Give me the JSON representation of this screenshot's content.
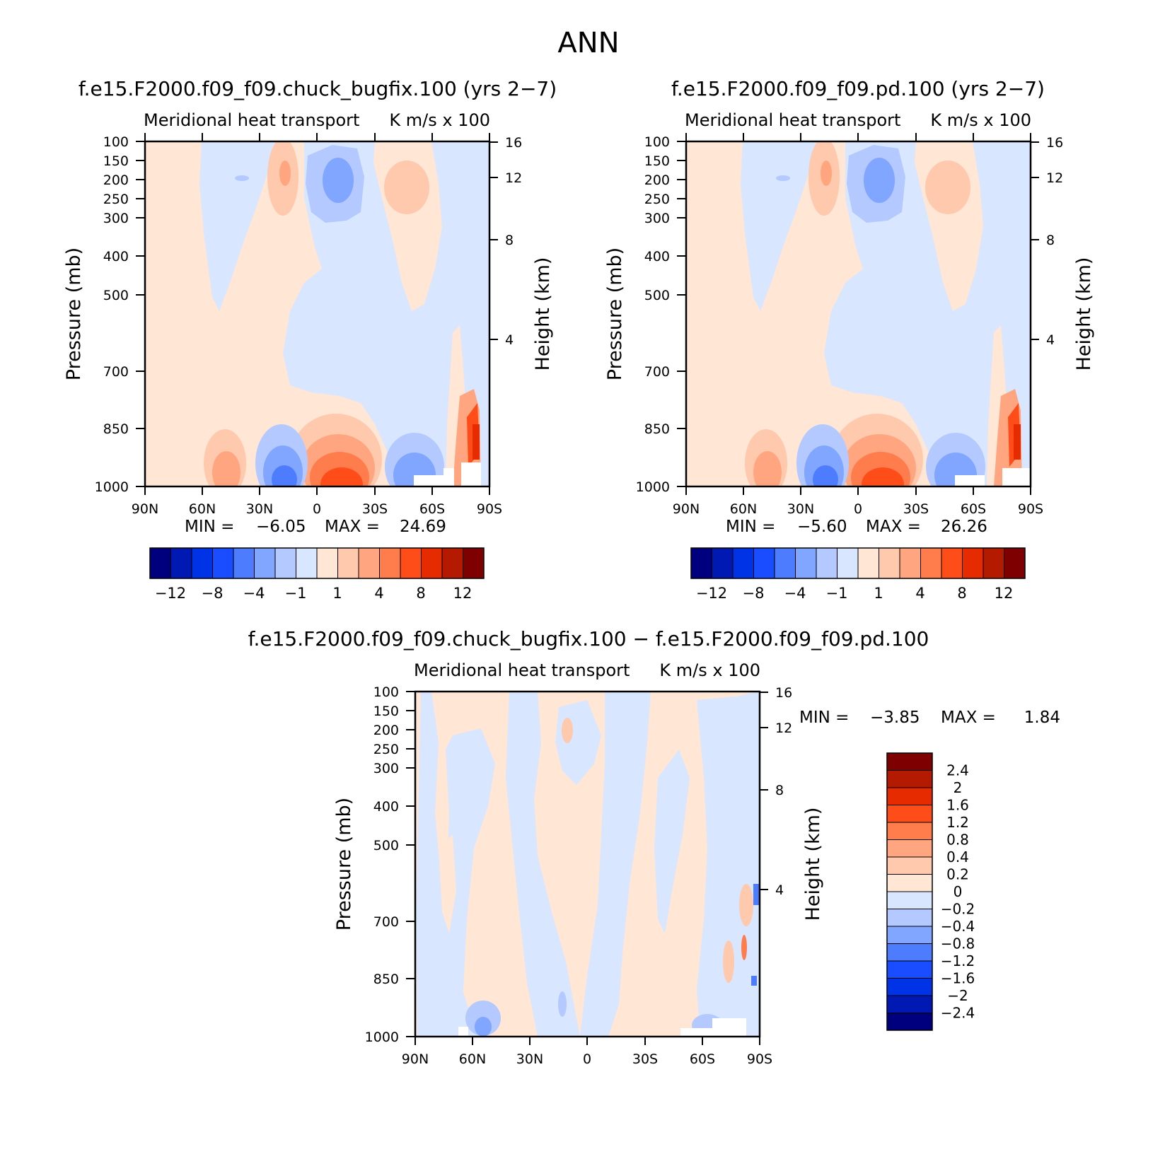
{
  "figure": {
    "title": "ANN"
  },
  "panels": [
    {
      "case_title": "f.e15.F2000.f09_f09.chuck_bugfix.100 (yrs 2−7)",
      "var_label": "Meridional heat transport",
      "units_label": "K m/s x 100",
      "ylabel": "Pressure (mb)",
      "ylabel_right": "Height (km)",
      "min_label": "MIN =",
      "min_value": "−6.05",
      "max_label": "MAX =",
      "max_value": "24.69"
    },
    {
      "case_title": "f.e15.F2000.f09_f09.pd.100 (yrs 2−7)",
      "var_label": "Meridional heat transport",
      "units_label": "K m/s x 100",
      "ylabel": "Pressure (mb)",
      "ylabel_right": "Height (km)",
      "min_label": "MIN =",
      "min_value": "−5.60",
      "max_label": "MAX =",
      "max_value": "26.26"
    },
    {
      "case_title": "f.e15.F2000.f09_f09.chuck_bugfix.100 − f.e15.F2000.f09_f09.pd.100",
      "var_label": "Meridional heat transport",
      "units_label": "K m/s x 100",
      "ylabel": "Pressure (mb)",
      "ylabel_right": "Height (km)",
      "min_label": "MIN =",
      "min_value": "−3.85",
      "max_label": "MAX =",
      "max_value": "1.84"
    }
  ],
  "colorbar_main": {
    "colors": [
      "#00007f",
      "#0019b3",
      "#0033e6",
      "#1a4dff",
      "#4d7cff",
      "#80a6ff",
      "#b3c9ff",
      "#d9e6ff",
      "#ffe6d5",
      "#ffc9ad",
      "#ffa680",
      "#ff7c4d",
      "#ff4d1a",
      "#e62b00",
      "#b31a00",
      "#7f0000"
    ],
    "tick_labels": [
      "−12",
      "−8",
      "−4",
      "−1",
      "1",
      "4",
      "8",
      "12"
    ]
  },
  "colorbar_diff": {
    "colors": [
      "#00007f",
      "#0019b3",
      "#0033e6",
      "#1a4dff",
      "#4d7cff",
      "#80a6ff",
      "#b3c9ff",
      "#d9e6ff",
      "#ffe6d5",
      "#ffc9ad",
      "#ffa680",
      "#ff7c4d",
      "#ff4d1a",
      "#e62b00",
      "#b31a00",
      "#7f0000"
    ],
    "tick_labels": [
      "−2.4",
      "−2",
      "−1.6",
      "−1.2",
      "−0.8",
      "−0.4",
      "−0.2",
      "0",
      "0.2",
      "0.4",
      "0.8",
      "1.2",
      "1.6",
      "2",
      "2.4"
    ]
  },
  "chart_data": [
    {
      "type": "heatmap",
      "title": "f.e15.F2000.f09_f09.chuck_bugfix.100 (yrs 2−7)",
      "subtitle": "Meridional heat transport",
      "units": "K m/s x 100",
      "xlabel": "",
      "ylabel": "Pressure (mb)",
      "ylabel_right": "Height (km)",
      "x_ticks": [
        "90N",
        "60N",
        "30N",
        "0",
        "30S",
        "60S",
        "90S"
      ],
      "y_ticks": [
        "100",
        "150",
        "200",
        "250",
        "300",
        "400",
        "500",
        "700",
        "850",
        "1000"
      ],
      "y_ticks_right": [
        "16",
        "12",
        "8",
        "4"
      ],
      "xlim": [
        90,
        -90
      ],
      "ylim": [
        1000,
        100
      ],
      "y_scale": "log",
      "min": -6.05,
      "max": 24.69,
      "contour_levels": [
        -12,
        -10,
        -8,
        -6,
        -4,
        -2,
        -1,
        0,
        1,
        2,
        4,
        6,
        8,
        10,
        12
      ]
    },
    {
      "type": "heatmap",
      "title": "f.e15.F2000.f09_f09.pd.100 (yrs 2−7)",
      "subtitle": "Meridional heat transport",
      "units": "K m/s x 100",
      "xlabel": "",
      "ylabel": "Pressure (mb)",
      "ylabel_right": "Height (km)",
      "x_ticks": [
        "90N",
        "60N",
        "30N",
        "0",
        "30S",
        "60S",
        "90S"
      ],
      "y_ticks": [
        "100",
        "150",
        "200",
        "250",
        "300",
        "400",
        "500",
        "700",
        "850",
        "1000"
      ],
      "y_ticks_right": [
        "16",
        "12",
        "8",
        "4"
      ],
      "xlim": [
        90,
        -90
      ],
      "ylim": [
        1000,
        100
      ],
      "y_scale": "log",
      "min": -5.6,
      "max": 26.26,
      "contour_levels": [
        -12,
        -10,
        -8,
        -6,
        -4,
        -2,
        -1,
        0,
        1,
        2,
        4,
        6,
        8,
        10,
        12
      ]
    },
    {
      "type": "heatmap",
      "title": "f.e15.F2000.f09_f09.chuck_bugfix.100 − f.e15.F2000.f09_f09.pd.100",
      "subtitle": "Meridional heat transport",
      "units": "K m/s x 100",
      "xlabel": "",
      "ylabel": "Pressure (mb)",
      "ylabel_right": "Height (km)",
      "x_ticks": [
        "90N",
        "60N",
        "30N",
        "0",
        "30S",
        "60S",
        "90S"
      ],
      "y_ticks": [
        "100",
        "150",
        "200",
        "250",
        "300",
        "400",
        "500",
        "700",
        "850",
        "1000"
      ],
      "y_ticks_right": [
        "16",
        "12",
        "8",
        "4"
      ],
      "xlim": [
        90,
        -90
      ],
      "ylim": [
        1000,
        100
      ],
      "y_scale": "log",
      "min": -3.85,
      "max": 1.84,
      "contour_levels": [
        -2.4,
        -2,
        -1.6,
        -1.2,
        -0.8,
        -0.4,
        -0.2,
        0,
        0.2,
        0.4,
        0.8,
        1.2,
        1.6,
        2,
        2.4
      ]
    }
  ]
}
